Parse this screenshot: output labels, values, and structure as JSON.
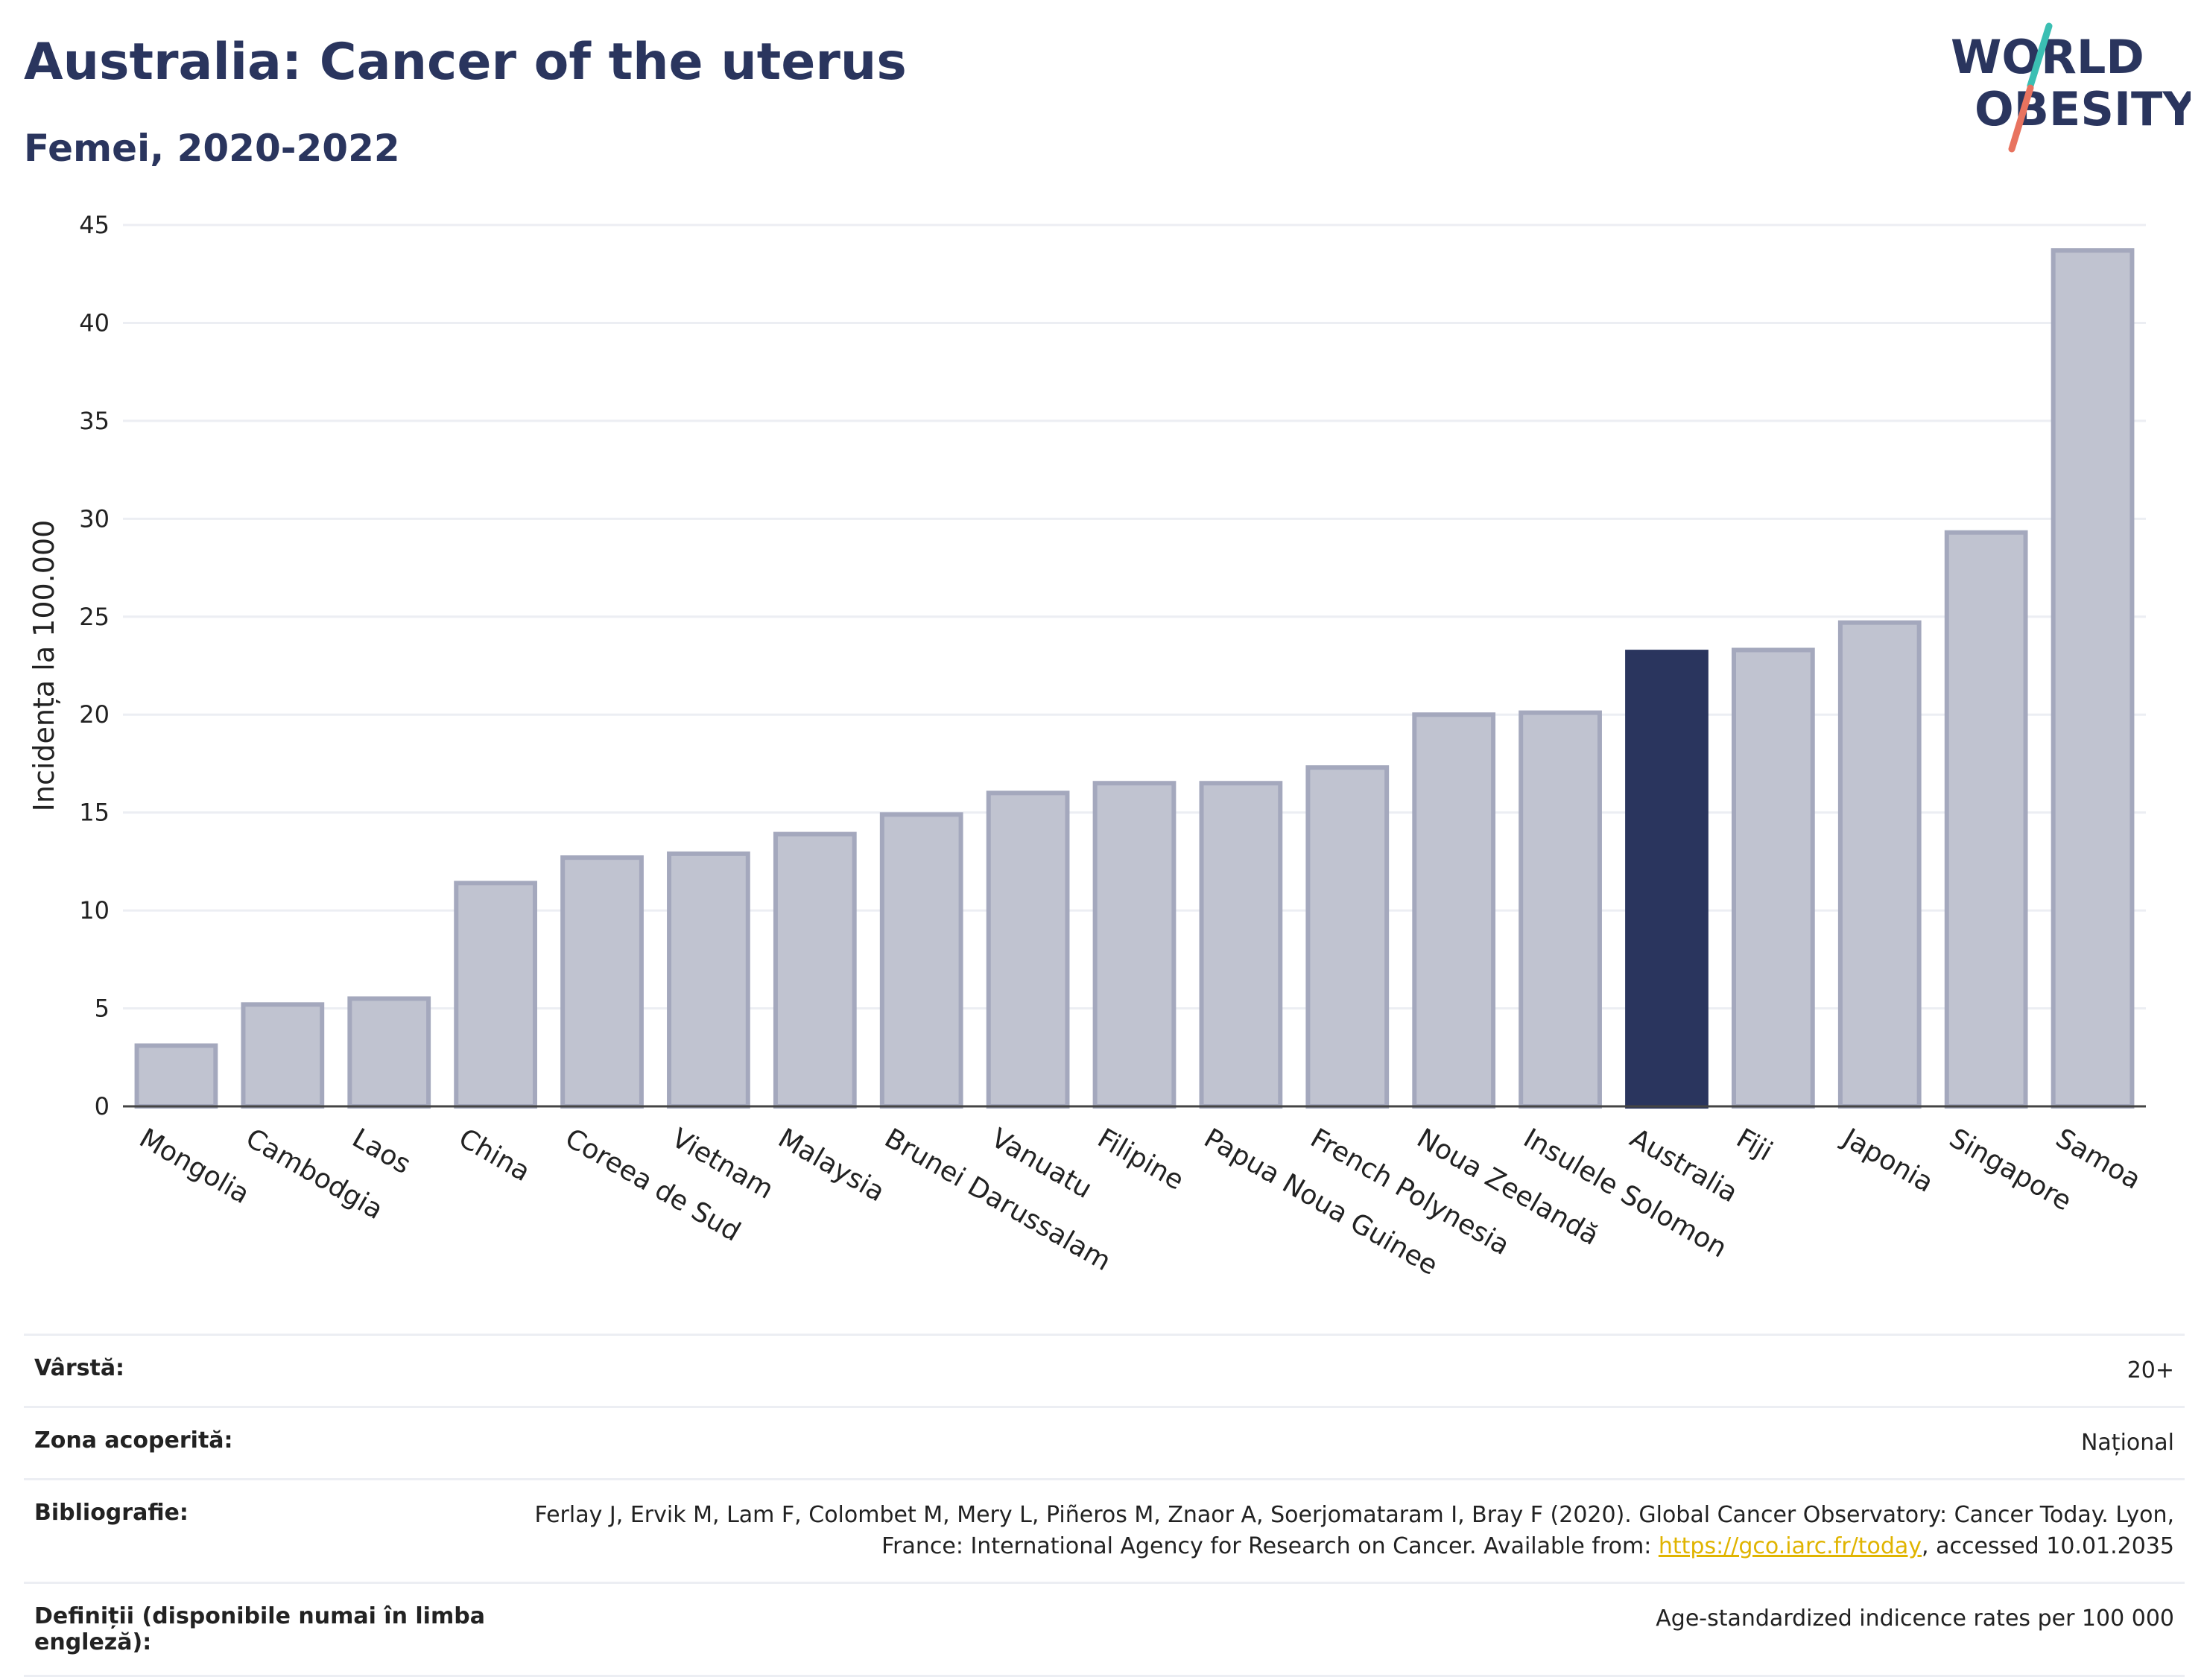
{
  "header": {
    "title": "Australia: Cancer of the uterus",
    "subtitle": "Femei, 2020-2022"
  },
  "logo": {
    "line1": "WORLD",
    "line2": "OBESITY",
    "colors": {
      "text": "#2a355e",
      "slash_top": "#3bbfb3",
      "slash_bottom": "#e8735f"
    }
  },
  "chart_data": {
    "type": "bar",
    "title": "",
    "xlabel": "",
    "ylabel": "Incidența la 100.000",
    "ylim": [
      0,
      45
    ],
    "yticks": [
      0,
      5,
      10,
      15,
      20,
      25,
      30,
      35,
      40,
      45
    ],
    "grid": true,
    "highlight": "Australia",
    "colors": {
      "bar": "#c0c3d0",
      "bar_border": "#a4a8bd",
      "highlight": "#2a355e"
    },
    "categories": [
      "Mongolia",
      "Cambodgia",
      "Laos",
      "China",
      "Coreea de Sud",
      "Vietnam",
      "Malaysia",
      "Brunei Darussalam",
      "Vanuatu",
      "Filipine",
      "Papua Noua Guinee",
      "French Polynesia",
      "Noua Zeelandă",
      "Insulele Solomon",
      "Australia",
      "Fiji",
      "Japonia",
      "Singapore",
      "Samoa"
    ],
    "values": [
      3.1,
      5.2,
      5.5,
      11.4,
      12.7,
      12.9,
      13.9,
      14.9,
      16.0,
      16.5,
      16.5,
      17.3,
      20.0,
      20.1,
      23.2,
      23.3,
      24.7,
      29.3,
      43.7
    ]
  },
  "info": {
    "rows": [
      {
        "key": "Vârstă:",
        "value": "20+"
      },
      {
        "key": "Zona acoperită:",
        "value": "Național"
      },
      {
        "key": "Bibliografie:",
        "value_before": "Ferlay J, Ervik M, Lam F, Colombet M, Mery L, Piñeros M, Znaor A, Soerjomataram I, Bray F (2020). Global Cancer Observatory: Cancer Today. Lyon, France: International Agency for Research on Cancer. Available from: ",
        "link": "https://gco.iarc.fr/today",
        "value_after": ", accessed 10.01.2035"
      },
      {
        "key": "Definiții (disponibile numai în limba engleză):",
        "value": "Age-standardized indicence rates per 100 000"
      }
    ]
  }
}
